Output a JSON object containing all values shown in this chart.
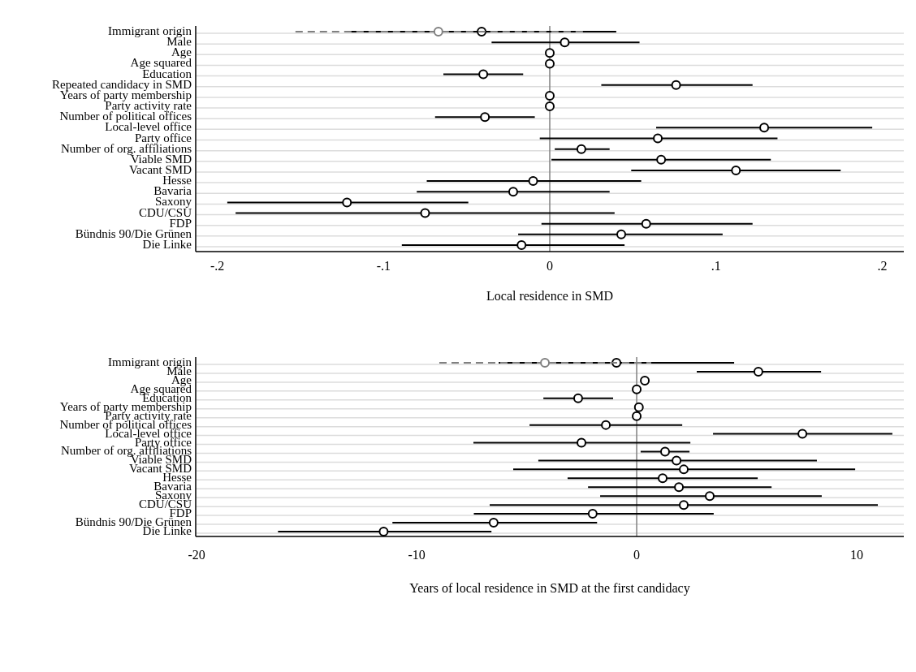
{
  "chart_data": [
    {
      "type": "scatter",
      "orientation": "horizontal",
      "xlabel": "Local residence in SMD",
      "categories": [
        "Immigrant origin",
        "Male",
        "Age",
        "Age squared",
        "Education",
        "Repeated candidacy in SMD",
        "Years of party membership",
        "Party activity rate",
        "Number of political offices",
        "Local-level office",
        "Party office",
        "Number of org. affiliations",
        "Viable SMD",
        "Vacant SMD",
        "Hesse",
        "Bavaria",
        "Saxony",
        "CDU/CSU",
        "FDP",
        "Bündnis 90/Die Grünen",
        "Die Linke"
      ],
      "series": [
        {
          "color": "#000000",
          "values": [
            -0.041,
            0.009,
            0,
            0,
            -0.04,
            0.076,
            0,
            0,
            -0.039,
            0.129,
            0.065,
            0.019,
            0.067,
            0.112,
            -0.01,
            -0.022,
            -0.122,
            -0.075,
            0.058,
            0.043,
            -0.017
          ],
          "errors": [
            [
              -0.122,
              0.04
            ],
            [
              -0.035,
              0.054
            ],
            null,
            null,
            [
              -0.064,
              -0.016
            ],
            [
              0.031,
              0.122
            ],
            null,
            null,
            [
              -0.069,
              -0.009
            ],
            [
              0.064,
              0.194
            ],
            [
              -0.006,
              0.137
            ],
            [
              0.003,
              0.036
            ],
            [
              0.001,
              0.133
            ],
            [
              0.049,
              0.175
            ],
            [
              -0.074,
              0.055
            ],
            [
              -0.08,
              0.036
            ],
            [
              -0.194,
              -0.049
            ],
            [
              -0.189,
              0.039
            ],
            [
              -0.005,
              0.122
            ],
            [
              -0.019,
              0.104
            ],
            [
              -0.089,
              0.045
            ]
          ]
        },
        {
          "color": "#808080",
          "line_style": "dashed",
          "values": [
            -0.067,
            null,
            null,
            null,
            null,
            null,
            null,
            null,
            null,
            null,
            null,
            null,
            null,
            null,
            null,
            null,
            null,
            null,
            null,
            null,
            null
          ],
          "errors": [
            [
              -0.153,
              0.02
            ],
            null,
            null,
            null,
            null,
            null,
            null,
            null,
            null,
            null,
            null,
            null,
            null,
            null,
            null,
            null,
            null,
            null,
            null,
            null,
            null
          ]
        }
      ],
      "xlim": [
        -0.213,
        0.213
      ],
      "xticks": [
        {
          "value": -0.2,
          "label": "-.2"
        },
        {
          "value": -0.1,
          "label": "-.1"
        },
        0,
        {
          "value": 0.1,
          "label": ".1"
        },
        {
          "value": 0.2,
          "label": ".2"
        }
      ],
      "ref_lines": [
        {
          "axis": "x",
          "value": 0,
          "color": "#808080"
        }
      ],
      "grid": "y",
      "marker": "circle"
    },
    {
      "type": "scatter",
      "orientation": "horizontal",
      "xlabel": "Years of local residence in SMD at the first candidacy",
      "categories": [
        "Immigrant origin",
        "Male",
        "Age",
        "Age squared",
        "Education",
        "Years of party membership",
        "Party activity rate",
        "Number of political offices",
        "Local-level office",
        "Party office",
        "Number of org. affiliations",
        "Viable SMD",
        "Vacant SMD",
        "Hesse",
        "Bavaria",
        "Saxony",
        "CDU/CSU",
        "FDP",
        "Bündnis 90/Die Grünen",
        "Die Linke"
      ],
      "series": [
        {
          "color": "#000000",
          "values": [
            -0.92,
            5.53,
            0.37,
            0,
            -2.66,
            0.1,
            0,
            -1.4,
            7.53,
            -2.51,
            1.29,
            1.81,
            2.14,
            1.18,
            1.92,
            3.32,
            2.14,
            -2.0,
            -6.5,
            -11.5
          ],
          "errors": [
            [
              -6.27,
              4.43
            ],
            [
              2.73,
              8.38
            ],
            null,
            null,
            [
              -4.24,
              -1.07
            ],
            null,
            null,
            [
              -4.87,
              2.07
            ],
            [
              3.47,
              11.62
            ],
            [
              -7.42,
              2.44
            ],
            [
              0.18,
              2.4
            ],
            [
              -4.47,
              8.19
            ],
            [
              -5.61,
              9.93
            ],
            [
              -3.14,
              5.5
            ],
            [
              -2.21,
              6.13
            ],
            [
              -1.66,
              8.41
            ],
            [
              -6.68,
              10.96
            ],
            [
              -7.4,
              3.5
            ],
            [
              -11.1,
              -1.8
            ],
            [
              -16.3,
              -6.6
            ]
          ]
        },
        {
          "color": "#808080",
          "line_style": "dashed",
          "values": [
            -4.17,
            null,
            null,
            null,
            null,
            null,
            null,
            null,
            null,
            null,
            null,
            null,
            null,
            null,
            null,
            null,
            null,
            null,
            null,
            null
          ],
          "errors": [
            [
              -8.97,
              0.66
            ],
            null,
            null,
            null,
            null,
            null,
            null,
            null,
            null,
            null,
            null,
            null,
            null,
            null,
            null,
            null,
            null,
            null,
            null,
            null
          ]
        }
      ],
      "xlim": [
        -20.04,
        12.14
      ],
      "xticks": [
        -20,
        -10,
        0,
        10
      ],
      "ref_lines": [
        {
          "axis": "x",
          "value": 0,
          "color": "#808080"
        }
      ],
      "grid": "y",
      "marker": "circle"
    }
  ]
}
